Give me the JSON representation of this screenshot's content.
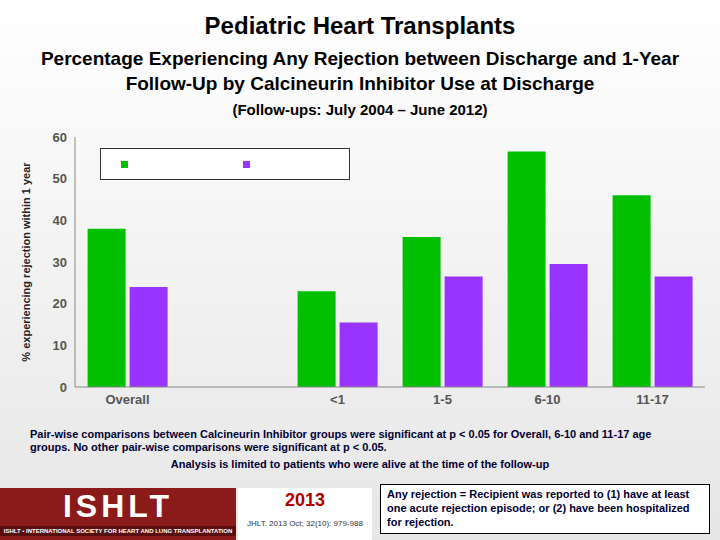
{
  "chart_data": {
    "type": "bar",
    "title": "Pediatric Heart Transplants",
    "subtitle": "Percentage Experiencing Any Rejection between Discharge and 1-Year Follow-Up by Calcineurin Inhibitor Use at Discharge",
    "subtitle2": "(Follow-ups: July 2004 – June 2012)",
    "y_label": "% experiencing rejection within 1 year",
    "categories": [
      "Overall",
      null,
      "<1",
      "1-5",
      "6-10",
      "11-17"
    ],
    "series": [
      {
        "color": "#00c000",
        "values": [
          38,
          null,
          23,
          36,
          56.5,
          46
        ]
      },
      {
        "color": "#9933ff",
        "values": [
          24,
          null,
          15.5,
          26.5,
          29.5,
          26.5
        ]
      }
    ],
    "ylim": [
      0,
      60
    ],
    "yticks": [
      0,
      10,
      20,
      30,
      40,
      50,
      60
    ],
    "grid": false,
    "legend": "top",
    "notes": [
      "Pair-wise comparisons between Calcineurin Inhibitor groups were significant at p < 0.05 for Overall, 6-10 and 11-17 age groups. No other pair-wise comparisons were significant at p < 0.05.",
      "Analysis is limited to patients who were alive at the time of the follow-up"
    ],
    "footer": {
      "logo": "ISHLT",
      "logo_subtitle": "ISHLT • INTERNATIONAL SOCIETY FOR HEART AND LUNG TRANSPLANTATION",
      "year": "2013",
      "citation": "JHLT. 2013 Oct; 32(10): 979-988",
      "definition": "Any rejection = Recipient was reported to (1) have at least one acute rejection episode; or (2) have been hospitalized for rejection."
    }
  }
}
